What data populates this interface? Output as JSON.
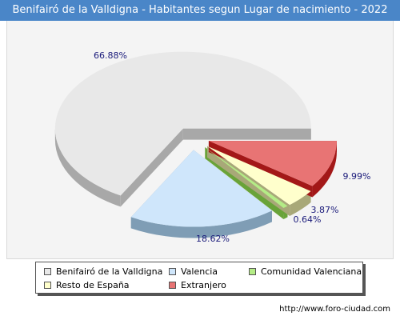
{
  "title": "Benifairó de la Valldigna - Habitantes segun Lugar de nacimiento - 2022",
  "source": "http://www.foro-ciudad.com",
  "chart_data": {
    "type": "pie",
    "style": "3d-exploded",
    "series": [
      {
        "name": "Benifairó de la Valldigna",
        "value": 66.88,
        "label": "66.88%",
        "color": "#e8e8e8",
        "side": "#a8a8a8"
      },
      {
        "name": "Valencia",
        "value": 18.62,
        "label": "18.62%",
        "color": "#cfe6fb",
        "side": "#7f9db5"
      },
      {
        "name": "Comunidad Valenciana",
        "value": 0.64,
        "label": "0.64%",
        "color": "#b4ec86",
        "side": "#69a339"
      },
      {
        "name": "Resto de España",
        "value": 3.87,
        "label": "3.87%",
        "color": "#ffffcc",
        "side": "#a8a878"
      },
      {
        "name": "Extranjero",
        "value": 9.99,
        "label": "9.99%",
        "color": "#e87474",
        "side": "#a31818"
      }
    ]
  }
}
